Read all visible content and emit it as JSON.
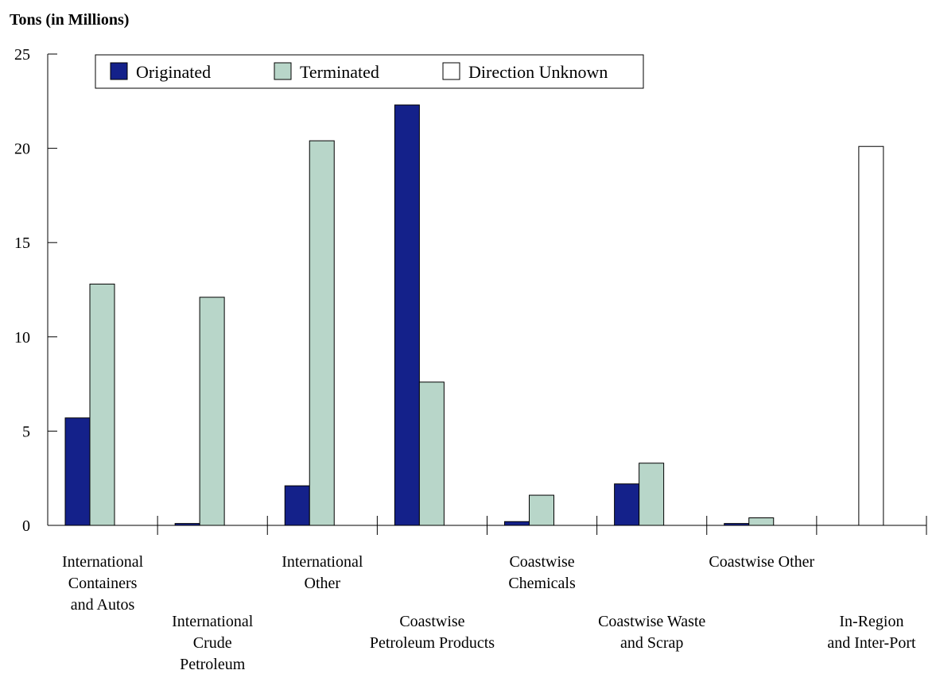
{
  "chart_data": {
    "type": "bar",
    "title": "",
    "ylabel": "Tons (in Millions)",
    "xlabel": "",
    "ylim": [
      0,
      25
    ],
    "yticks": [
      0,
      5,
      10,
      15,
      20,
      25
    ],
    "grid": false,
    "legend_position": "top",
    "categories": [
      [
        "International",
        "Containers",
        "and Autos"
      ],
      [
        "International",
        "Crude",
        "Petroleum"
      ],
      [
        "International",
        "Other"
      ],
      [
        "Coastwise",
        "Petroleum Products"
      ],
      [
        "Coastwise",
        "Chemicals"
      ],
      [
        "Coastwise Waste",
        "and Scrap"
      ],
      [
        "Coastwise Other"
      ],
      [
        "In-Region",
        "and Inter-Port"
      ]
    ],
    "series": [
      {
        "name": "Originated",
        "color": "#14218a",
        "values": [
          5.7,
          0.1,
          2.1,
          22.3,
          0.2,
          2.2,
          0.1,
          0
        ]
      },
      {
        "name": "Terminated",
        "color": "#b8d6c9",
        "values": [
          12.8,
          12.1,
          20.4,
          7.6,
          1.6,
          3.3,
          0.4,
          0
        ]
      },
      {
        "name": "Direction Unknown",
        "color": "#ffffff",
        "values": [
          0,
          0,
          0,
          0,
          0,
          0,
          0,
          20.1
        ]
      }
    ]
  }
}
